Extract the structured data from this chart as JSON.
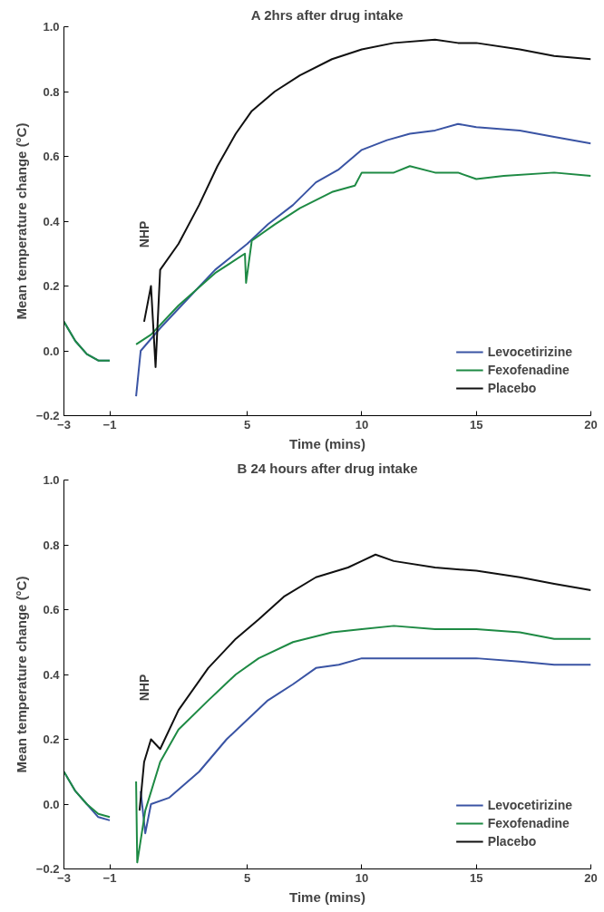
{
  "chart_data": [
    {
      "type": "line",
      "title": "A 2hrs after drug intake",
      "xlabel": "Time (mins)",
      "ylabel": "Mean temperature change (°C)",
      "xlim": [
        -3,
        20
      ],
      "xticks": [
        -3,
        -1,
        5,
        10,
        15,
        20
      ],
      "ylim": [
        -0.2,
        1.0
      ],
      "yticks": [
        {
          "value": -0.2,
          "label": "−0.2"
        },
        {
          "value": 0,
          "label": "0.0"
        },
        {
          "value": 0.2,
          "label": "0.2"
        },
        {
          "value": 0.4,
          "label": "0.4"
        },
        {
          "value": 0.6,
          "label": "0.6"
        },
        {
          "value": 0.8,
          "label": "0.8"
        },
        {
          "value": 1.0,
          "label": "1.0"
        }
      ],
      "grid": false,
      "legend": "bottom right",
      "annotations": [
        "NHP"
      ],
      "series": [
        {
          "name": "Levocetirizine",
          "color": "#3a54a4",
          "x": [
            -3,
            -2.5,
            -2,
            -1.5,
            -1,
            -0.5,
            0.15,
            0.35,
            1.2,
            2.4,
            3.6,
            5,
            5.9,
            7,
            8,
            9,
            10,
            11.1,
            12.1,
            13.2,
            14.2,
            15,
            16.9,
            18.4,
            20
          ],
          "values": [
            0.09,
            0.03,
            -0.01,
            -0.03,
            -0.03,
            null,
            -0.14,
            0.0,
            0.07,
            0.16,
            0.25,
            0.33,
            0.39,
            0.45,
            0.52,
            0.56,
            0.62,
            0.65,
            0.67,
            0.68,
            0.7,
            0.69,
            0.68,
            0.66,
            0.64
          ]
        },
        {
          "name": "Fexofenadine",
          "color": "#1e8a44",
          "x": [
            -3,
            -2.5,
            -2,
            -1.5,
            -1,
            -0.5,
            0.15,
            0.8,
            2.0,
            3.6,
            4.9,
            4.95,
            5.2,
            6.2,
            7.3,
            8.7,
            9.7,
            10,
            11.4,
            12.1,
            13.2,
            14.2,
            15,
            16.2,
            18.4,
            20
          ],
          "values": [
            0.09,
            0.03,
            -0.01,
            -0.03,
            -0.03,
            null,
            0.02,
            0.05,
            0.14,
            0.24,
            0.3,
            0.21,
            0.34,
            0.39,
            0.44,
            0.49,
            0.51,
            0.55,
            0.55,
            0.57,
            0.55,
            0.55,
            0.53,
            0.54,
            0.55,
            0.54
          ]
        },
        {
          "name": "Placebo",
          "color": "#111111",
          "x": [
            0.5,
            0.8,
            1.0,
            1.2,
            2.0,
            2.9,
            3.7,
            4.5,
            5.2,
            6.2,
            7.3,
            8.7,
            10,
            11.4,
            13.2,
            14.2,
            15,
            16.9,
            18.4,
            20
          ],
          "values": [
            0.09,
            0.2,
            -0.05,
            0.25,
            0.33,
            0.45,
            0.57,
            0.67,
            0.74,
            0.8,
            0.85,
            0.9,
            0.93,
            0.95,
            0.96,
            0.95,
            0.95,
            0.93,
            0.91,
            0.9
          ]
        }
      ]
    },
    {
      "type": "line",
      "title": "B 24 hours after drug intake",
      "xlabel": "Time (mins)",
      "ylabel": "Mean temperature change (°C)",
      "xlim": [
        -3,
        20
      ],
      "xticks": [
        -3,
        -1,
        5,
        10,
        15,
        20
      ],
      "ylim": [
        -0.2,
        1.0
      ],
      "yticks": [
        {
          "value": -0.2,
          "label": "−0.2"
        },
        {
          "value": 0,
          "label": "0.0"
        },
        {
          "value": 0.2,
          "label": "0.2"
        },
        {
          "value": 0.4,
          "label": "0.4"
        },
        {
          "value": 0.6,
          "label": "0.6"
        },
        {
          "value": 0.8,
          "label": "0.8"
        },
        {
          "value": 1.0,
          "label": "1.0"
        }
      ],
      "grid": false,
      "legend": "bottom right",
      "annotations": [
        "NHP"
      ],
      "series": [
        {
          "name": "Levocetirizine",
          "color": "#3a54a4",
          "x": [
            -3,
            -2.5,
            -2,
            -1.5,
            -1,
            -0.5,
            0.35,
            0.55,
            0.8,
            1.6,
            2.9,
            4.1,
            5,
            5.9,
            7,
            8,
            9,
            10,
            11.4,
            13.2,
            15,
            16.9,
            18.4,
            20
          ],
          "values": [
            0.1,
            0.04,
            0.0,
            -0.04,
            -0.05,
            null,
            0.04,
            -0.09,
            0.0,
            0.02,
            0.1,
            0.2,
            0.26,
            0.32,
            0.37,
            0.42,
            0.43,
            0.45,
            0.45,
            0.45,
            0.45,
            0.44,
            0.43,
            0.43
          ]
        },
        {
          "name": "Fexofenadine",
          "color": "#1e8a44",
          "x": [
            -3,
            -2.5,
            -2,
            -1.5,
            -1,
            -0.5,
            0.15,
            0.2,
            0.55,
            1.2,
            2.0,
            3.3,
            4.5,
            5.5,
            7,
            8.7,
            10,
            11.4,
            13.2,
            15,
            16.9,
            18.4,
            20
          ],
          "values": [
            0.1,
            0.04,
            0.0,
            -0.03,
            -0.04,
            null,
            0.07,
            -0.18,
            -0.02,
            0.13,
            0.23,
            0.32,
            0.4,
            0.45,
            0.5,
            0.53,
            0.54,
            0.55,
            0.54,
            0.54,
            0.53,
            0.51,
            0.51
          ]
        },
        {
          "name": "Placebo",
          "color": "#111111",
          "x": [
            0.3,
            0.5,
            0.8,
            1.2,
            2.0,
            3.3,
            4.5,
            5.5,
            6.6,
            8,
            9.4,
            10,
            10.6,
            11.4,
            13.2,
            15,
            16.9,
            18.4,
            20
          ],
          "values": [
            -0.02,
            0.13,
            0.2,
            0.17,
            0.29,
            0.42,
            0.51,
            0.57,
            0.64,
            0.7,
            0.73,
            0.75,
            0.77,
            0.75,
            0.73,
            0.72,
            0.7,
            0.68,
            0.66
          ]
        }
      ]
    }
  ]
}
